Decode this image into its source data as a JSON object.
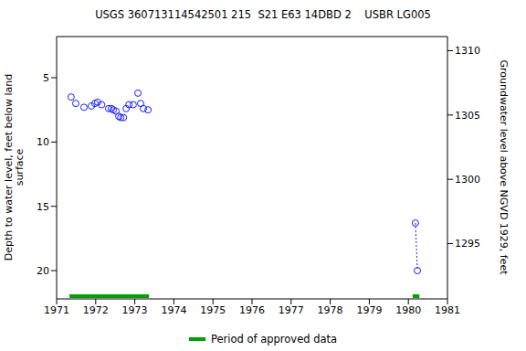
{
  "chart_data": {
    "type": "scatter",
    "title": "USGS 360713114542501 215  S21 E63 14DBD 2    USBR LG005",
    "y_label": "Depth to water level, feet below land surface",
    "y2_label": "Groundwater level above NGVD 1929, feet",
    "xlim": [
      1971,
      1981
    ],
    "xticks": [
      1971,
      1972,
      1973,
      1974,
      1975,
      1976,
      1977,
      1978,
      1979,
      1980,
      1981
    ],
    "ylim": [
      1.8,
      22.2
    ],
    "yticks": [
      5,
      10,
      15,
      20
    ],
    "y2lim": [
      1290.7,
      1311.1
    ],
    "y2ticks": [
      1295,
      1300,
      1305,
      1310
    ],
    "series": [
      {
        "x": [
          1971.37,
          1971.49,
          1971.7,
          1971.89,
          1971.98,
          1972.05,
          1972.15,
          1972.33,
          1972.4,
          1972.45,
          1972.52,
          1972.59,
          1972.64,
          1972.71,
          1972.78,
          1972.85,
          1972.96,
          1973.08,
          1973.15,
          1973.22,
          1973.34,
          1980.18,
          1980.23
        ],
        "values": [
          6.5,
          7.0,
          7.3,
          7.2,
          7.0,
          6.9,
          7.1,
          7.4,
          7.4,
          7.5,
          7.6,
          8.0,
          8.1,
          8.1,
          7.4,
          7.1,
          7.1,
          6.2,
          7.0,
          7.4,
          7.5,
          16.3,
          20.0
        ],
        "color": "#1c1cff",
        "marker": "open_circle",
        "line_style": "none"
      },
      {
        "x": [
          1980.18,
          1980.23
        ],
        "values": [
          16.3,
          20.0
        ],
        "color": "#1c1cff",
        "marker": "none",
        "line_style": "dotted"
      }
    ],
    "approved_periods": {
      "name": "Period of approved data",
      "color": "#00a000",
      "ranges": [
        [
          1971.33,
          1973.36
        ],
        [
          1980.11,
          1980.28
        ]
      ]
    }
  }
}
